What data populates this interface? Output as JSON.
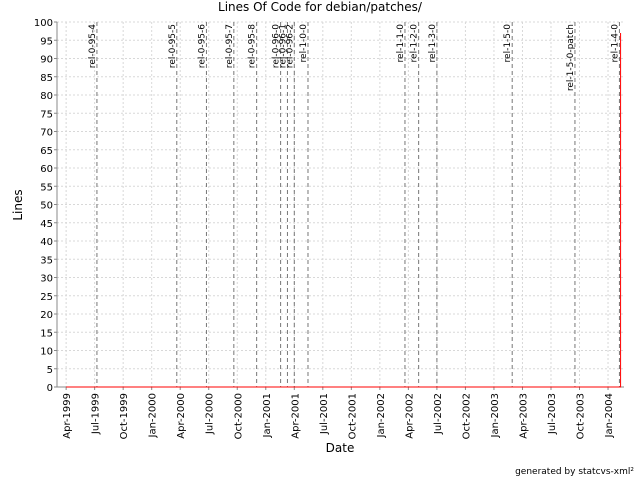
{
  "chart_data": {
    "type": "line",
    "title": "Lines Of Code for debian/patches/",
    "x_label": "Date",
    "y_label": "Lines",
    "footer": "generated by statcvs-xml²",
    "xlim": [
      1999.17,
      2004.14
    ],
    "ylim": [
      0,
      100
    ],
    "xticks": [
      {
        "value": 1999.25,
        "label": "Apr-1999"
      },
      {
        "value": 1999.5,
        "label": "Jul-1999"
      },
      {
        "value": 1999.75,
        "label": "Oct-1999"
      },
      {
        "value": 2000.0,
        "label": "Jan-2000"
      },
      {
        "value": 2000.25,
        "label": "Apr-2000"
      },
      {
        "value": 2000.5,
        "label": "Jul-2000"
      },
      {
        "value": 2000.75,
        "label": "Oct-2000"
      },
      {
        "value": 2001.0,
        "label": "Jan-2001"
      },
      {
        "value": 2001.25,
        "label": "Apr-2001"
      },
      {
        "value": 2001.5,
        "label": "Jul-2001"
      },
      {
        "value": 2001.75,
        "label": "Oct-2001"
      },
      {
        "value": 2002.0,
        "label": "Jan-2002"
      },
      {
        "value": 2002.25,
        "label": "Apr-2002"
      },
      {
        "value": 2002.5,
        "label": "Jul-2002"
      },
      {
        "value": 2002.75,
        "label": "Oct-2002"
      },
      {
        "value": 2003.0,
        "label": "Jan-2003"
      },
      {
        "value": 2003.25,
        "label": "Apr-2003"
      },
      {
        "value": 2003.5,
        "label": "Jul-2003"
      },
      {
        "value": 2003.75,
        "label": "Oct-2003"
      },
      {
        "value": 2004.0,
        "label": "Jan-2004"
      }
    ],
    "yticks": [
      0,
      5,
      10,
      15,
      20,
      25,
      30,
      35,
      40,
      45,
      50,
      55,
      60,
      65,
      70,
      75,
      80,
      85,
      90,
      95,
      100
    ],
    "grid": true,
    "series": [
      {
        "color": "#ff0000",
        "x": [
          1999.25,
          2004.11,
          2004.11
        ],
        "values": [
          0,
          0,
          97
        ]
      }
    ],
    "markers": [
      {
        "label": "rel-0-95-4",
        "x": 1999.52
      },
      {
        "label": "rel-0-95-5",
        "x": 2000.22
      },
      {
        "label": "rel-0-95-6",
        "x": 2000.48
      },
      {
        "label": "rel-0-95-7",
        "x": 2000.72
      },
      {
        "label": "rel-0-95-8",
        "x": 2000.92
      },
      {
        "label": "rel-0-96-0",
        "x": 2001.13
      },
      {
        "label": "rel-0-96-1",
        "x": 2001.19
      },
      {
        "label": "rel-0-96-2",
        "x": 2001.25
      },
      {
        "label": "rel-1-0-0",
        "x": 2001.37
      },
      {
        "label": "rel-1-1-0",
        "x": 2002.22
      },
      {
        "label": "rel-1-2-0",
        "x": 2002.34
      },
      {
        "label": "rel-1-3-0",
        "x": 2002.5
      },
      {
        "label": "rel-1-5-0",
        "x": 2003.16
      },
      {
        "label": "rel-1-5-0-patch",
        "x": 2003.71
      },
      {
        "label": "rel-1-4-0",
        "x": 2004.1
      }
    ]
  }
}
